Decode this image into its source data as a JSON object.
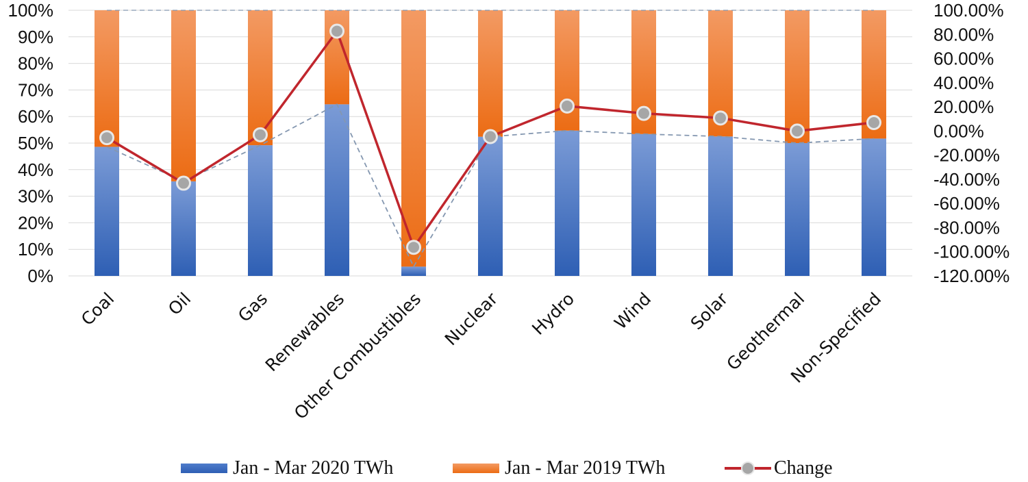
{
  "chart_data": {
    "type": "bar",
    "stacked": true,
    "categories": [
      "Coal",
      "Oil",
      "Gas",
      "Renewables",
      "Other Combustibles",
      "Nuclear",
      "Hydro",
      "Wind",
      "Solar",
      "Geothermal",
      "Non-Specified"
    ],
    "series": [
      {
        "name": "Jan - Mar 2020 TWh",
        "type": "bar",
        "axis": "left",
        "values": [
          48.6,
          35.6,
          49.2,
          64.6,
          3.5,
          52.4,
          54.7,
          53.4,
          52.5,
          50.0,
          51.7
        ],
        "color": "#4472c4"
      },
      {
        "name": "Jan - Mar 2019 TWh",
        "type": "bar",
        "axis": "left",
        "values": [
          51.4,
          64.4,
          50.8,
          35.4,
          96.5,
          47.6,
          45.3,
          46.6,
          47.5,
          50.0,
          48.3
        ],
        "color": "#ed7d31"
      },
      {
        "name": "Change",
        "type": "line",
        "axis": "right",
        "values": [
          -5.5,
          -43.2,
          -3.1,
          82.7,
          -96.3,
          -4.6,
          20.7,
          14.6,
          10.8,
          0.0,
          7.0
        ],
        "color": "#c0262d"
      }
    ],
    "y_left": {
      "ticks": [
        "0%",
        "10%",
        "20%",
        "30%",
        "40%",
        "50%",
        "60%",
        "70%",
        "80%",
        "90%",
        "100%"
      ],
      "ylim": [
        0,
        100
      ]
    },
    "y_right": {
      "ticks": [
        "-120.00%",
        "-100.00%",
        "-80.00%",
        "-60.00%",
        "-40.00%",
        "-20.00%",
        "0.00%",
        "20.00%",
        "40.00%",
        "60.00%",
        "80.00%",
        "100.00%"
      ],
      "ylim": [
        -120,
        100
      ]
    },
    "title": "",
    "xlabel": "",
    "ylabel": "",
    "grid": true,
    "legend_position": "bottom",
    "colors": {
      "bar_2020": "#4472c4",
      "bar_2019": "#ed7d31",
      "change_line": "#c0262d",
      "marker": "#a6a6a6",
      "dashed_line": "#8497b0",
      "grid": "#d9d9d9"
    }
  },
  "legend": {
    "items": [
      {
        "label": "Jan - Mar 2020 TWh"
      },
      {
        "label": "Jan - Mar 2019 TWh"
      },
      {
        "label": "Change"
      }
    ]
  }
}
